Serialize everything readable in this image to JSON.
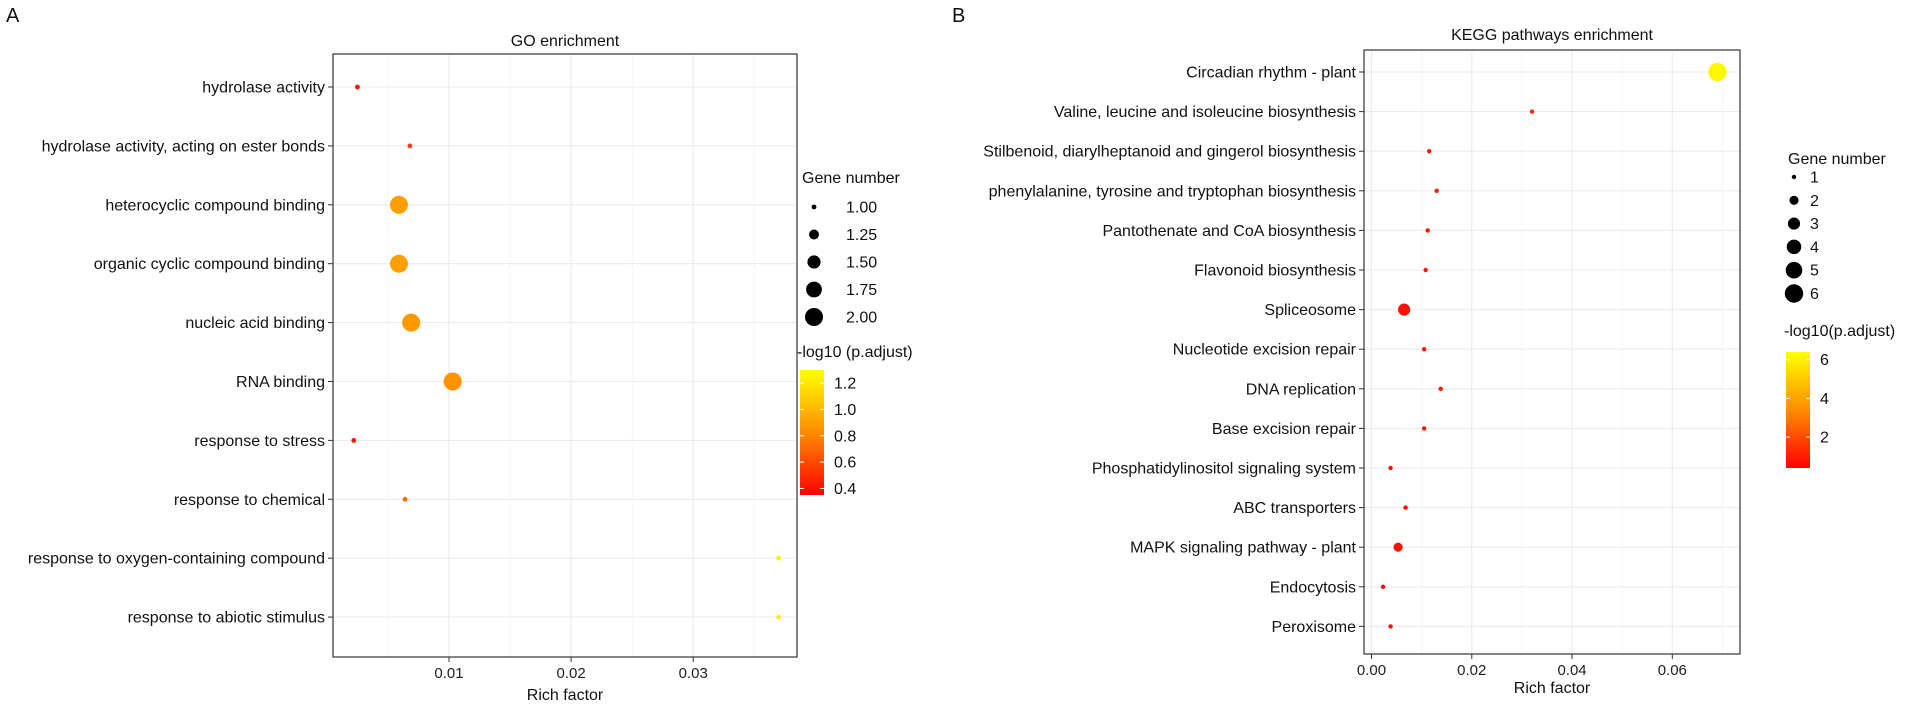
{
  "colors": {
    "low": "#FF0000",
    "mid": "#FF8C00",
    "high": "#FFFF00",
    "grid": "#EBEBEB",
    "frame": "#333333"
  },
  "chart_data": [
    {
      "panel_label": "A",
      "type": "scatter",
      "title": "GO enrichment",
      "xlabel": "Rich factor",
      "ylabel": "",
      "xlim": [
        0.0005,
        0.0385
      ],
      "xticks": [
        0.01,
        0.02,
        0.03
      ],
      "xtick_labels": [
        "0.01",
        "0.02",
        "0.03"
      ],
      "categories": [
        "hydrolase activity",
        "hydrolase activity, acting on ester bonds",
        "heterocyclic compound binding",
        "organic cyclic compound binding",
        "nucleic acid binding",
        "RNA binding",
        "response to stress",
        "response to chemical",
        "response to oxygen-containing compound",
        "response to abiotic stimulus"
      ],
      "x": [
        0.0025,
        0.0068,
        0.0059,
        0.0059,
        0.0069,
        0.0103,
        0.0022,
        0.0064,
        0.037,
        0.037
      ],
      "size": [
        1,
        1,
        2,
        2,
        2,
        2,
        1,
        1,
        1,
        1
      ],
      "color_value": [
        0.4,
        0.55,
        0.9,
        0.9,
        0.88,
        0.85,
        0.4,
        0.7,
        1.25,
        1.25
      ],
      "size_legend": {
        "title": "Gene number",
        "values": [
          1.0,
          1.25,
          1.5,
          1.75,
          2.0
        ],
        "labels": [
          "1.00",
          "1.25",
          "1.50",
          "1.75",
          "2.00"
        ]
      },
      "color_legend": {
        "title": "-log10 (p.adjust)",
        "range": [
          0.35,
          1.3
        ],
        "ticks": [
          0.4,
          0.6,
          0.8,
          1.0,
          1.2
        ],
        "labels": [
          "0.4",
          "0.6",
          "0.8",
          "1.0",
          "1.2"
        ]
      }
    },
    {
      "panel_label": "B",
      "type": "scatter",
      "title": "KEGG pathways enrichment",
      "xlabel": "Rich factor",
      "ylabel": "",
      "xlim": [
        -0.0015,
        0.0735
      ],
      "xticks": [
        0.0,
        0.02,
        0.04,
        0.06
      ],
      "xtick_labels": [
        "0.00",
        "0.02",
        "0.04",
        "0.06"
      ],
      "categories": [
        "Circadian rhythm - plant",
        "Valine, leucine and isoleucine biosynthesis",
        "Stilbenoid, diarylheptanoid and gingerol biosynthesis",
        "phenylalanine, tyrosine and tryptophan biosynthesis",
        "Pantothenate and CoA biosynthesis",
        "Flavonoid biosynthesis",
        "Spliceosome",
        "Nucleotide excision repair",
        "DNA replication",
        "Base excision repair",
        "Phosphatidylinositol signaling system",
        "ABC transporters",
        "MAPK signaling pathway - plant",
        "Endocytosis",
        "Peroxisome"
      ],
      "x": [
        0.069,
        0.032,
        0.0115,
        0.013,
        0.0112,
        0.0108,
        0.0065,
        0.0105,
        0.0138,
        0.0105,
        0.0038,
        0.0068,
        0.0053,
        0.0023,
        0.0038
      ],
      "size": [
        6,
        1,
        1,
        1,
        1,
        1,
        3,
        1,
        1,
        1,
        1,
        1,
        2,
        1,
        1
      ],
      "color_value": [
        6.2,
        1.2,
        0.9,
        0.9,
        0.85,
        0.85,
        0.75,
        0.75,
        0.9,
        0.7,
        0.6,
        0.7,
        0.7,
        0.6,
        0.6
      ],
      "size_legend": {
        "title": "Gene number",
        "values": [
          1,
          2,
          3,
          4,
          5,
          6
        ],
        "labels": [
          "1",
          "2",
          "3",
          "4",
          "5",
          "6"
        ]
      },
      "color_legend": {
        "title": "-log10(p.adjust)",
        "range": [
          0.4,
          6.4
        ],
        "ticks": [
          2,
          4,
          6
        ],
        "labels": [
          "2",
          "4",
          "6"
        ]
      }
    }
  ]
}
